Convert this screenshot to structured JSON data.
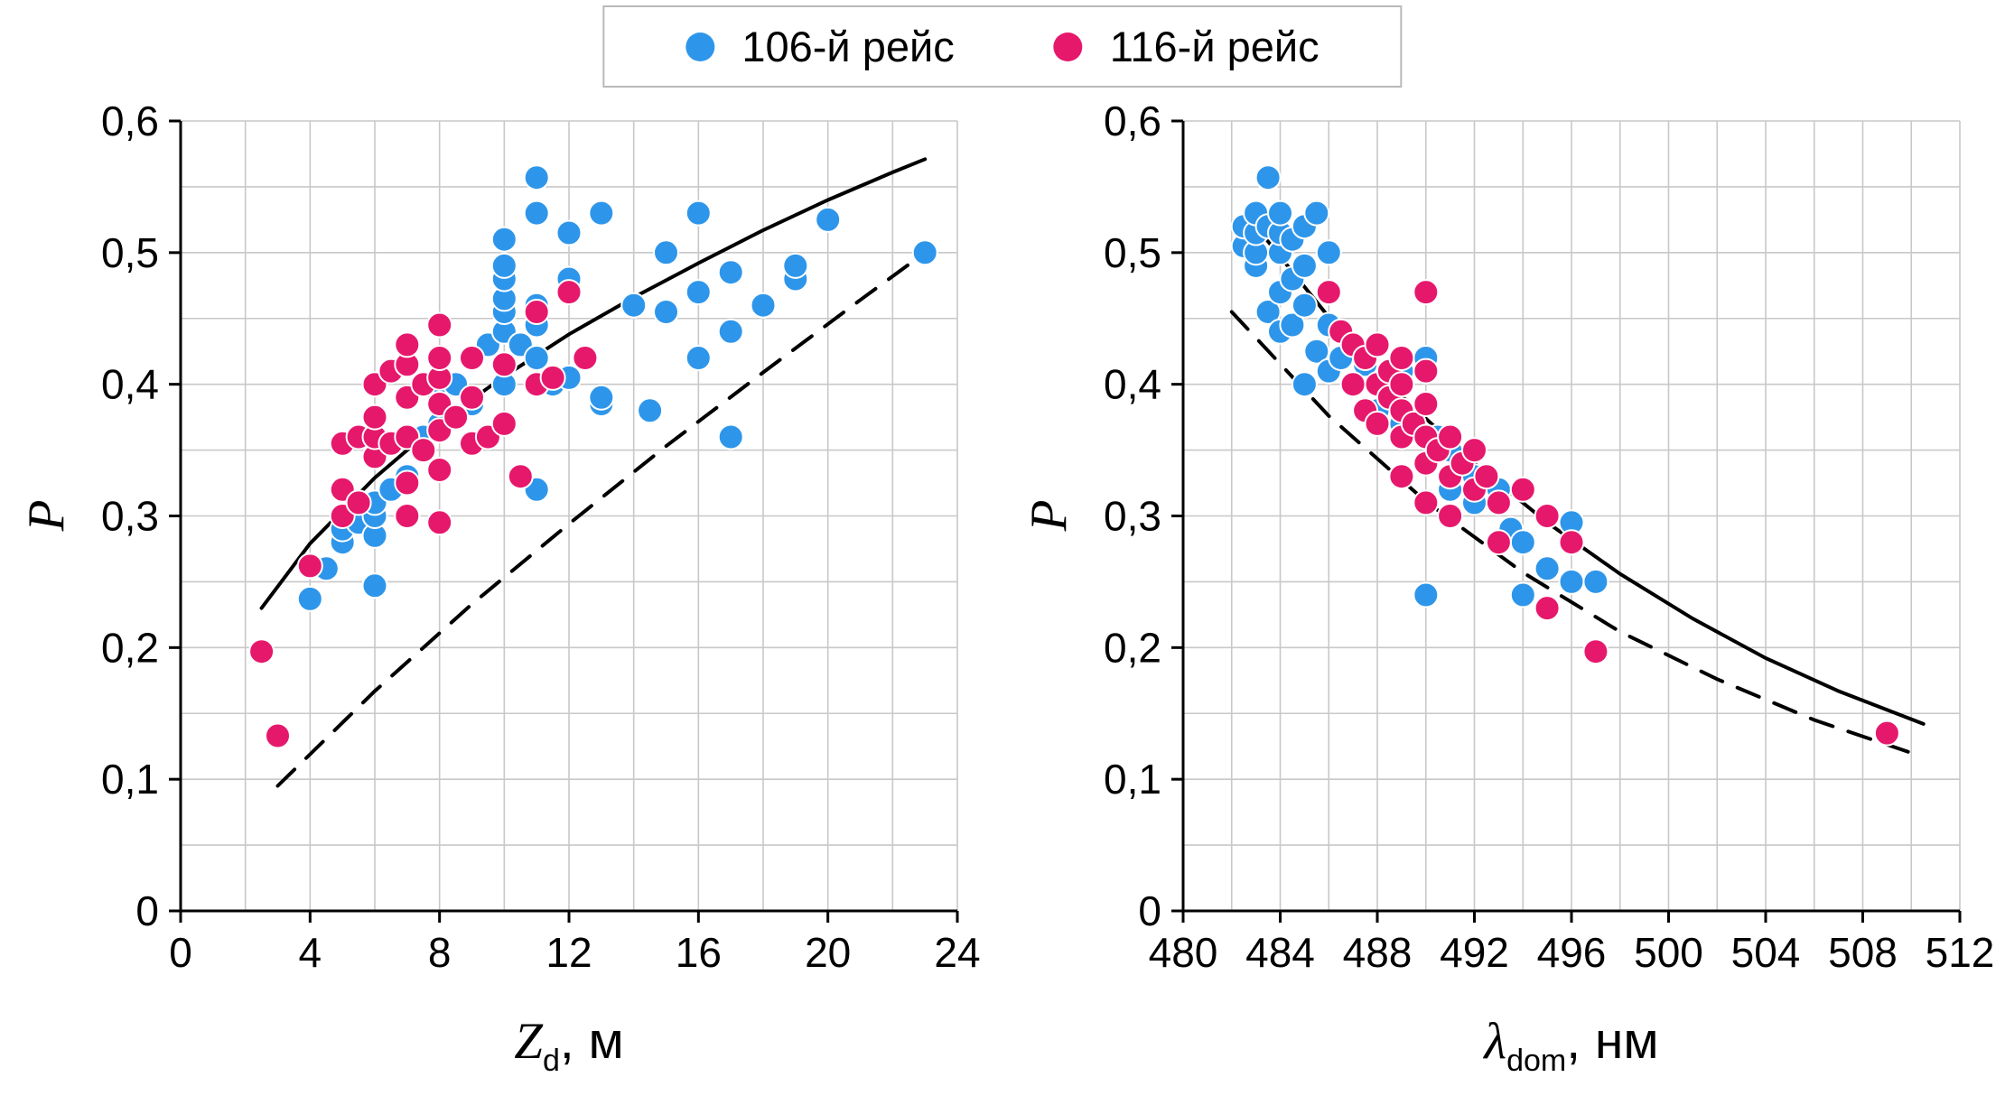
{
  "legend": {
    "items": [
      {
        "label": "106-й рейс",
        "color": "#2E96EA",
        "marker": "circle-icon"
      },
      {
        "label": "116-й рейс",
        "color": "#E6186C",
        "marker": "circle-icon"
      }
    ]
  },
  "style": {
    "grid_color": "#c8c8c8",
    "axis_color": "#000000",
    "curve_color": "#000000",
    "background": "#ffffff",
    "marker_radius": 13.5
  },
  "chart_data": [
    {
      "type": "scatter",
      "title": "",
      "xlabel": {
        "main": "Z",
        "sub": "d",
        "rest": ", м"
      },
      "ylabel": "P",
      "xlim": [
        0,
        24
      ],
      "ylim": [
        0,
        0.6
      ],
      "x_ticks": [
        0,
        4,
        8,
        12,
        16,
        20,
        24
      ],
      "x_grid_step": 2,
      "y_grid_step": 0.05,
      "y_ticks": [
        {
          "value": 0,
          "label": "0"
        },
        {
          "value": 0.1,
          "label": "0,1"
        },
        {
          "value": 0.2,
          "label": "0,2"
        },
        {
          "value": 0.3,
          "label": "0,3"
        },
        {
          "value": 0.4,
          "label": "0,4"
        },
        {
          "value": 0.5,
          "label": "0,5"
        },
        {
          "value": 0.6,
          "label": "0,6"
        }
      ],
      "series": [
        {
          "name": "106-й рейс",
          "color": "#2E96EA",
          "points": [
            [
              4,
              0.237
            ],
            [
              4.5,
              0.26
            ],
            [
              5,
              0.28
            ],
            [
              5,
              0.29
            ],
            [
              5.5,
              0.295
            ],
            [
              6,
              0.247
            ],
            [
              6,
              0.285
            ],
            [
              6,
              0.3
            ],
            [
              6,
              0.31
            ],
            [
              6.5,
              0.32
            ],
            [
              7,
              0.3
            ],
            [
              7,
              0.33
            ],
            [
              7.5,
              0.36
            ],
            [
              8,
              0.37
            ],
            [
              8,
              0.39
            ],
            [
              8.5,
              0.4
            ],
            [
              9,
              0.385
            ],
            [
              9,
              0.42
            ],
            [
              9.5,
              0.43
            ],
            [
              10,
              0.4
            ],
            [
              10,
              0.44
            ],
            [
              10,
              0.455
            ],
            [
              10,
              0.465
            ],
            [
              10,
              0.48
            ],
            [
              10,
              0.49
            ],
            [
              10,
              0.51
            ],
            [
              10.5,
              0.43
            ],
            [
              11,
              0.32
            ],
            [
              11,
              0.4
            ],
            [
              11,
              0.42
            ],
            [
              11,
              0.445
            ],
            [
              11,
              0.46
            ],
            [
              11,
              0.53
            ],
            [
              11,
              0.557
            ],
            [
              11.5,
              0.4
            ],
            [
              12,
              0.405
            ],
            [
              12,
              0.48
            ],
            [
              12,
              0.515
            ],
            [
              13,
              0.385
            ],
            [
              13,
              0.39
            ],
            [
              13,
              0.53
            ],
            [
              14,
              0.46
            ],
            [
              14.5,
              0.38
            ],
            [
              15,
              0.455
            ],
            [
              15,
              0.5
            ],
            [
              16,
              0.42
            ],
            [
              16,
              0.47
            ],
            [
              16,
              0.53
            ],
            [
              17,
              0.36
            ],
            [
              17,
              0.44
            ],
            [
              17,
              0.485
            ],
            [
              18,
              0.46
            ],
            [
              19,
              0.48
            ],
            [
              19,
              0.49
            ],
            [
              20,
              0.525
            ],
            [
              23,
              0.5
            ]
          ]
        },
        {
          "name": "116-й рейс",
          "color": "#E6186C",
          "points": [
            [
              2.5,
              0.197
            ],
            [
              3,
              0.133
            ],
            [
              4,
              0.262
            ],
            [
              5,
              0.3
            ],
            [
              5,
              0.32
            ],
            [
              5,
              0.355
            ],
            [
              5.5,
              0.31
            ],
            [
              5.5,
              0.36
            ],
            [
              6,
              0.345
            ],
            [
              6,
              0.36
            ],
            [
              6,
              0.375
            ],
            [
              6,
              0.4
            ],
            [
              6.5,
              0.355
            ],
            [
              6.5,
              0.41
            ],
            [
              7,
              0.3
            ],
            [
              7,
              0.325
            ],
            [
              7,
              0.36
            ],
            [
              7,
              0.39
            ],
            [
              7,
              0.415
            ],
            [
              7,
              0.43
            ],
            [
              7.5,
              0.35
            ],
            [
              7.5,
              0.4
            ],
            [
              8,
              0.295
            ],
            [
              8,
              0.335
            ],
            [
              8,
              0.365
            ],
            [
              8,
              0.385
            ],
            [
              8,
              0.405
            ],
            [
              8,
              0.42
            ],
            [
              8,
              0.445
            ],
            [
              8.5,
              0.375
            ],
            [
              9,
              0.355
            ],
            [
              9,
              0.39
            ],
            [
              9,
              0.42
            ],
            [
              9.5,
              0.36
            ],
            [
              10,
              0.37
            ],
            [
              10,
              0.415
            ],
            [
              10.5,
              0.33
            ],
            [
              11,
              0.4
            ],
            [
              11,
              0.455
            ],
            [
              11.5,
              0.405
            ],
            [
              12,
              0.47
            ],
            [
              12.5,
              0.42
            ]
          ]
        }
      ],
      "curves": [
        {
          "name": "fit-solid",
          "dashed": false,
          "points": [
            [
              2.5,
              0.23
            ],
            [
              4,
              0.279
            ],
            [
              6,
              0.329
            ],
            [
              8,
              0.371
            ],
            [
              10,
              0.406
            ],
            [
              12,
              0.438
            ],
            [
              14,
              0.466
            ],
            [
              16,
              0.492
            ],
            [
              18,
              0.517
            ],
            [
              20,
              0.54
            ],
            [
              22,
              0.561
            ],
            [
              23,
              0.571
            ]
          ]
        },
        {
          "name": "fit-dashed",
          "dashed": true,
          "points": [
            [
              3,
              0.095
            ],
            [
              6,
              0.167
            ],
            [
              9,
              0.233
            ],
            [
              12,
              0.294
            ],
            [
              15,
              0.353
            ],
            [
              18,
              0.409
            ],
            [
              21,
              0.464
            ],
            [
              23,
              0.5
            ]
          ]
        }
      ]
    },
    {
      "type": "scatter",
      "title": "",
      "xlabel": {
        "main": "λ",
        "sub": "dom",
        "rest": ", нм"
      },
      "ylabel": "P",
      "xlim": [
        480,
        512
      ],
      "ylim": [
        0,
        0.6
      ],
      "x_ticks": [
        480,
        484,
        488,
        492,
        496,
        500,
        504,
        508,
        512
      ],
      "x_grid_step": 2,
      "y_grid_step": 0.05,
      "y_ticks": [
        {
          "value": 0,
          "label": "0"
        },
        {
          "value": 0.1,
          "label": "0,1"
        },
        {
          "value": 0.2,
          "label": "0,2"
        },
        {
          "value": 0.3,
          "label": "0,3"
        },
        {
          "value": 0.4,
          "label": "0,4"
        },
        {
          "value": 0.5,
          "label": "0,5"
        },
        {
          "value": 0.6,
          "label": "0,6"
        }
      ],
      "series": [
        {
          "name": "106-й рейс",
          "color": "#2E96EA",
          "points": [
            [
              482.5,
              0.505
            ],
            [
              482.5,
              0.52
            ],
            [
              483,
              0.49
            ],
            [
              483,
              0.5
            ],
            [
              483,
              0.515
            ],
            [
              483,
              0.53
            ],
            [
              483.5,
              0.455
            ],
            [
              483.5,
              0.52
            ],
            [
              483.5,
              0.557
            ],
            [
              484,
              0.44
            ],
            [
              484,
              0.47
            ],
            [
              484,
              0.5
            ],
            [
              484,
              0.515
            ],
            [
              484,
              0.53
            ],
            [
              484.5,
              0.445
            ],
            [
              484.5,
              0.48
            ],
            [
              484.5,
              0.51
            ],
            [
              485,
              0.4
            ],
            [
              485,
              0.46
            ],
            [
              485,
              0.49
            ],
            [
              485,
              0.52
            ],
            [
              485.5,
              0.425
            ],
            [
              485.5,
              0.53
            ],
            [
              486,
              0.41
            ],
            [
              486,
              0.445
            ],
            [
              486,
              0.5
            ],
            [
              486.5,
              0.42
            ],
            [
              487,
              0.4
            ],
            [
              487,
              0.43
            ],
            [
              487.5,
              0.415
            ],
            [
              488,
              0.38
            ],
            [
              488,
              0.43
            ],
            [
              488.5,
              0.4
            ],
            [
              489,
              0.37
            ],
            [
              489,
              0.41
            ],
            [
              490,
              0.24
            ],
            [
              490,
              0.42
            ],
            [
              490.5,
              0.36
            ],
            [
              491,
              0.32
            ],
            [
              491,
              0.35
            ],
            [
              492,
              0.31
            ],
            [
              492,
              0.33
            ],
            [
              493,
              0.32
            ],
            [
              493.5,
              0.29
            ],
            [
              494,
              0.24
            ],
            [
              494,
              0.28
            ],
            [
              495,
              0.26
            ],
            [
              496,
              0.25
            ],
            [
              496,
              0.295
            ],
            [
              497,
              0.25
            ]
          ]
        },
        {
          "name": "116-й рейс",
          "color": "#E6186C",
          "points": [
            [
              486,
              0.47
            ],
            [
              486.5,
              0.44
            ],
            [
              487,
              0.4
            ],
            [
              487,
              0.43
            ],
            [
              487.5,
              0.38
            ],
            [
              487.5,
              0.42
            ],
            [
              488,
              0.37
            ],
            [
              488,
              0.4
            ],
            [
              488,
              0.43
            ],
            [
              488.5,
              0.39
            ],
            [
              488.5,
              0.41
            ],
            [
              489,
              0.33
            ],
            [
              489,
              0.36
            ],
            [
              489,
              0.38
            ],
            [
              489,
              0.4
            ],
            [
              489,
              0.42
            ],
            [
              489.5,
              0.37
            ],
            [
              490,
              0.31
            ],
            [
              490,
              0.34
            ],
            [
              490,
              0.36
            ],
            [
              490,
              0.385
            ],
            [
              490,
              0.41
            ],
            [
              490,
              0.47
            ],
            [
              490.5,
              0.35
            ],
            [
              491,
              0.3
            ],
            [
              491,
              0.33
            ],
            [
              491,
              0.36
            ],
            [
              491.5,
              0.34
            ],
            [
              492,
              0.32
            ],
            [
              492,
              0.35
            ],
            [
              492.5,
              0.33
            ],
            [
              493,
              0.28
            ],
            [
              493,
              0.31
            ],
            [
              494,
              0.32
            ],
            [
              495,
              0.23
            ],
            [
              495,
              0.3
            ],
            [
              496,
              0.28
            ],
            [
              497,
              0.197
            ],
            [
              509,
              0.135
            ]
          ]
        }
      ],
      "curves": [
        {
          "name": "fit-solid",
          "dashed": false,
          "points": [
            [
              483,
              0.52
            ],
            [
              486,
              0.451
            ],
            [
              489,
              0.391
            ],
            [
              492,
              0.34
            ],
            [
              495,
              0.295
            ],
            [
              498,
              0.256
            ],
            [
              501,
              0.222
            ],
            [
              504,
              0.192
            ],
            [
              507,
              0.167
            ],
            [
              510.5,
              0.142
            ]
          ]
        },
        {
          "name": "fit-dashed",
          "dashed": true,
          "points": [
            [
              482,
              0.455
            ],
            [
              486,
              0.376
            ],
            [
              490,
              0.311
            ],
            [
              494,
              0.257
            ],
            [
              498,
              0.212
            ],
            [
              502,
              0.176
            ],
            [
              506,
              0.145
            ],
            [
              510,
              0.12
            ]
          ]
        }
      ]
    }
  ]
}
